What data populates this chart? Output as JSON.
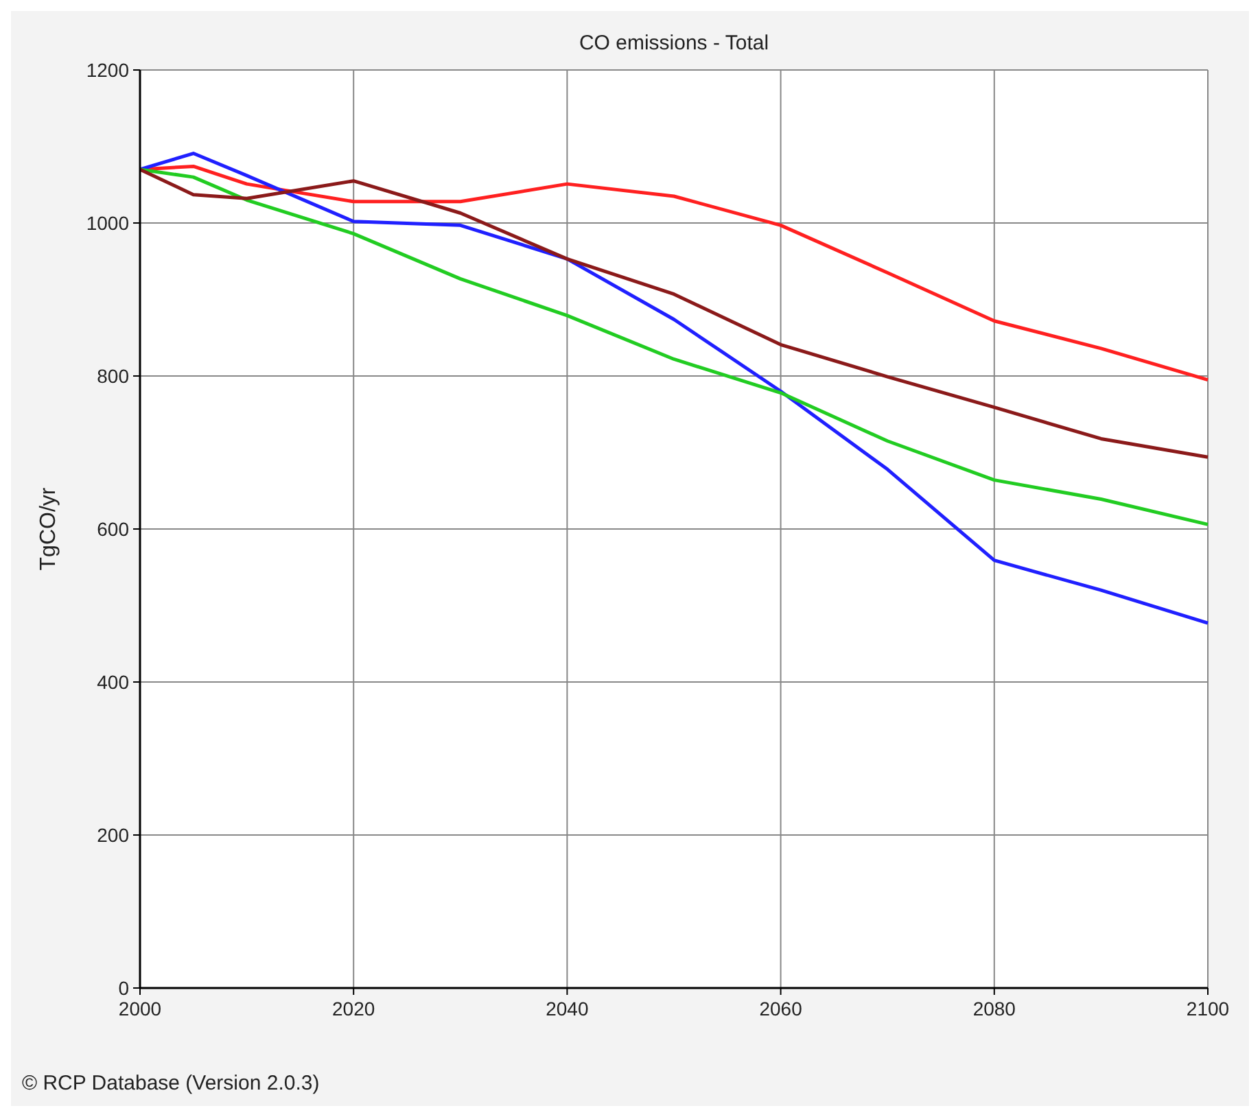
{
  "chart_data": {
    "type": "line",
    "title": "CO emissions - Total",
    "ylabel": "TgCO/yr",
    "x": [
      2000,
      2005,
      2010,
      2020,
      2030,
      2040,
      2050,
      2060,
      2070,
      2080,
      2090,
      2100
    ],
    "series": [
      {
        "color": "#ff2020",
        "values": [
          1070,
          1074,
          1051,
          1028,
          1028,
          1051,
          1035,
          997,
          935,
          872,
          836,
          795
        ]
      },
      {
        "color": "#2020ff",
        "values": [
          1070,
          1091,
          1062,
          1002,
          997,
          953,
          874,
          780,
          678,
          559,
          520,
          477
        ]
      },
      {
        "color": "#22cc22",
        "values": [
          1070,
          1060,
          1030,
          986,
          927,
          879,
          822,
          778,
          715,
          664,
          639,
          606
        ]
      },
      {
        "color": "#8b1a1a",
        "values": [
          1070,
          1037,
          1032,
          1055,
          1013,
          953,
          907,
          841,
          799,
          759,
          718,
          694
        ]
      }
    ],
    "xlim": [
      2000,
      2100
    ],
    "xticks": [
      2000,
      2020,
      2040,
      2060,
      2080,
      2100
    ],
    "ylim": [
      0,
      1200
    ],
    "yticks": [
      0,
      200,
      400,
      600,
      800,
      1000,
      1200
    ],
    "grid": true,
    "line_style": "solid",
    "marker": "none",
    "annotations": [
      "© RCP Database (Version 2.0.3)"
    ]
  }
}
